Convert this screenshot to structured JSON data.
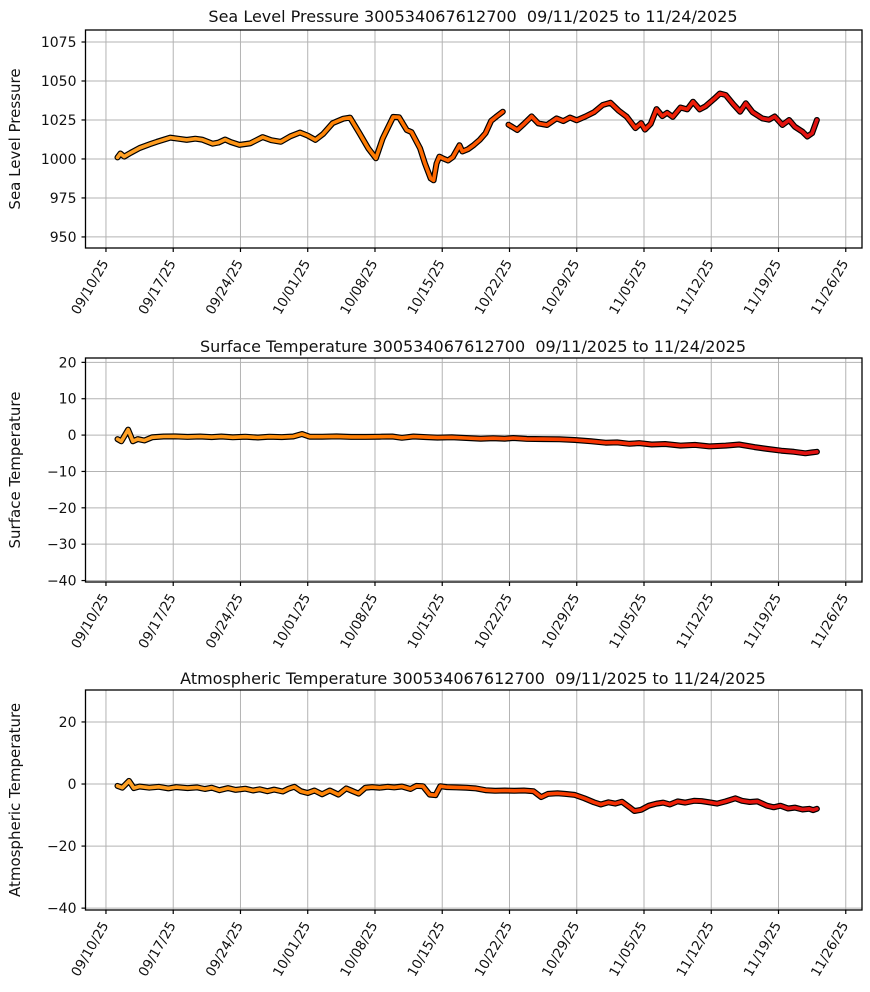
{
  "figure_meta": {
    "grid_color": "#b3b3b3",
    "axis_color": "#000000",
    "line_edge_color": "#000000",
    "line_gradient": [
      [
        "0%",
        "#ffa228"
      ],
      [
        "20%",
        "#ff9210"
      ],
      [
        "38%",
        "#ff7a00"
      ],
      [
        "52%",
        "#ff5800"
      ],
      [
        "65%",
        "#fa3a00"
      ],
      [
        "78%",
        "#f02206"
      ],
      [
        "90%",
        "#e8140c"
      ],
      [
        "100%",
        "#e01212"
      ]
    ]
  },
  "chart_data": [
    {
      "type": "line",
      "title": "Sea Level Pressure 300534067612700  09/11/2025 to 11/24/2025",
      "ylabel": "Sea Level Pressure",
      "grid": true,
      "legend": false,
      "xlim_days": [
        -2.13,
        78.69
      ],
      "ylim": [
        942.9,
        1082.7
      ],
      "x_tick_days": [
        0,
        7,
        14,
        21,
        28,
        35,
        42,
        49,
        56,
        63,
        70,
        77
      ],
      "x_tick_labels": [
        "09/10/25",
        "09/17/25",
        "09/24/25",
        "10/01/25",
        "10/08/25",
        "10/15/25",
        "10/22/25",
        "10/29/25",
        "11/05/25",
        "11/12/25",
        "11/19/25",
        "11/26/25"
      ],
      "y_ticks": [
        950,
        975,
        1000,
        1025,
        1050,
        1075
      ],
      "y_tick_labels": [
        "950",
        "975",
        "1000",
        "1025",
        "1050",
        "1075"
      ],
      "x_is_days_since": "09/10/2025",
      "segments": [
        [
          [
            1.2,
            1001
          ],
          [
            1.5,
            1003.5
          ],
          [
            1.9,
            1001.5
          ],
          [
            2.6,
            1004
          ],
          [
            3.5,
            1007
          ],
          [
            4.6,
            1009.5
          ],
          [
            5.3,
            1011
          ],
          [
            6.7,
            1013.7
          ],
          [
            7.5,
            1013
          ],
          [
            8.4,
            1012.2
          ],
          [
            9.3,
            1013
          ],
          [
            10.0,
            1012.4
          ],
          [
            11.1,
            1009.8
          ],
          [
            11.7,
            1010.5
          ],
          [
            12.4,
            1012.5
          ],
          [
            13.0,
            1010.8
          ],
          [
            13.9,
            1009
          ],
          [
            15.0,
            1010
          ],
          [
            16.3,
            1014
          ],
          [
            17.2,
            1012
          ],
          [
            18.2,
            1011
          ],
          [
            19.2,
            1014.5
          ],
          [
            20.2,
            1017
          ],
          [
            21.0,
            1015
          ],
          [
            21.8,
            1012.2
          ],
          [
            22.6,
            1016
          ],
          [
            23.6,
            1023
          ],
          [
            24.7,
            1025.8
          ],
          [
            25.4,
            1026.5
          ],
          [
            26.4,
            1016.4
          ],
          [
            27.3,
            1006.8
          ],
          [
            28.1,
            1000.4
          ],
          [
            28.8,
            1013.2
          ],
          [
            29.9,
            1027
          ],
          [
            30.5,
            1026.8
          ],
          [
            31.3,
            1018.6
          ],
          [
            31.8,
            1017.2
          ],
          [
            32.7,
            1006.8
          ],
          [
            33.2,
            997.2
          ],
          [
            33.8,
            987.5
          ],
          [
            34.1,
            986.3
          ],
          [
            34.4,
            997
          ],
          [
            34.7,
            1001.5
          ],
          [
            35.1,
            1000.3
          ],
          [
            35.6,
            999
          ],
          [
            36.1,
            1001.2
          ],
          [
            36.8,
            1008.8
          ],
          [
            37.1,
            1004.8
          ],
          [
            37.7,
            1006.3
          ],
          [
            38.3,
            1009
          ],
          [
            38.9,
            1012.2
          ],
          [
            39.5,
            1016.5
          ],
          [
            40.1,
            1024.5
          ],
          [
            40.6,
            1027
          ],
          [
            41.3,
            1030.3
          ]
        ],
        [
          [
            41.9,
            1022
          ],
          [
            42.3,
            1020.5
          ],
          [
            42.8,
            1018.6
          ],
          [
            43.5,
            1022.5
          ],
          [
            44.3,
            1027.3
          ],
          [
            45.0,
            1022.8
          ],
          [
            45.9,
            1021.8
          ],
          [
            46.9,
            1026
          ],
          [
            47.6,
            1024.3
          ],
          [
            48.3,
            1026.6
          ],
          [
            49.0,
            1024.8
          ],
          [
            49.9,
            1027.2
          ],
          [
            50.8,
            1030
          ],
          [
            51.7,
            1034.6
          ],
          [
            52.5,
            1036.1
          ],
          [
            53.4,
            1030.8
          ],
          [
            54.2,
            1027.1
          ],
          [
            55.1,
            1019.8
          ],
          [
            55.7,
            1023
          ],
          [
            56.1,
            1018.8
          ],
          [
            56.7,
            1022.5
          ],
          [
            57.3,
            1032
          ],
          [
            57.9,
            1027.5
          ],
          [
            58.4,
            1029.6
          ],
          [
            59.0,
            1027
          ],
          [
            59.8,
            1033
          ],
          [
            60.5,
            1031.8
          ],
          [
            61.1,
            1036.7
          ],
          [
            61.8,
            1031.8
          ],
          [
            62.4,
            1033.8
          ],
          [
            63.3,
            1038.5
          ],
          [
            63.9,
            1042
          ],
          [
            64.5,
            1041
          ],
          [
            65.3,
            1035
          ],
          [
            66.0,
            1030.3
          ],
          [
            66.6,
            1035.7
          ],
          [
            67.3,
            1030
          ],
          [
            68.3,
            1026
          ],
          [
            69.0,
            1025.2
          ],
          [
            69.6,
            1027.2
          ],
          [
            70.4,
            1021.8
          ],
          [
            71.1,
            1025
          ],
          [
            71.7,
            1020.7
          ],
          [
            72.5,
            1017.5
          ],
          [
            73.0,
            1014.4
          ],
          [
            73.5,
            1016.5
          ],
          [
            74.0,
            1025
          ]
        ]
      ]
    },
    {
      "type": "line",
      "title": "Surface Temperature 300534067612700  09/11/2025 to 11/24/2025",
      "ylabel": "Surface Temperature",
      "grid": true,
      "legend": false,
      "xlim_days": [
        -2.13,
        78.69
      ],
      "ylim": [
        -40.4,
        21.2
      ],
      "x_tick_days": [
        0,
        7,
        14,
        21,
        28,
        35,
        42,
        49,
        56,
        63,
        70,
        77
      ],
      "x_tick_labels": [
        "09/10/25",
        "09/17/25",
        "09/24/25",
        "10/01/25",
        "10/08/25",
        "10/15/25",
        "10/22/25",
        "10/29/25",
        "11/05/25",
        "11/12/25",
        "11/19/25",
        "11/26/25"
      ],
      "y_ticks": [
        20,
        10,
        0,
        -10,
        -20,
        -30,
        -40
      ],
      "y_tick_labels": [
        "20",
        "10",
        "0",
        "−10",
        "−20",
        "−30",
        "−40"
      ],
      "x_is_days_since": "09/10/2025",
      "segments": [
        [
          [
            1.2,
            -1.1
          ],
          [
            1.6,
            -1.7
          ],
          [
            2.3,
            1.5
          ],
          [
            2.8,
            -1.7
          ],
          [
            3.3,
            -1.1
          ],
          [
            4.0,
            -1.5
          ],
          [
            4.8,
            -0.6
          ],
          [
            6.0,
            -0.4
          ],
          [
            7.2,
            -0.35
          ],
          [
            8.5,
            -0.5
          ],
          [
            9.8,
            -0.4
          ],
          [
            11.0,
            -0.55
          ],
          [
            12.0,
            -0.4
          ],
          [
            13.2,
            -0.6
          ],
          [
            14.5,
            -0.45
          ],
          [
            15.8,
            -0.65
          ],
          [
            17.0,
            -0.45
          ],
          [
            18.3,
            -0.55
          ],
          [
            19.5,
            -0.4
          ],
          [
            20.4,
            0.3
          ],
          [
            21.2,
            -0.45
          ],
          [
            22.5,
            -0.45
          ],
          [
            24.0,
            -0.35
          ],
          [
            25.5,
            -0.5
          ],
          [
            27.0,
            -0.5
          ],
          [
            28.5,
            -0.45
          ],
          [
            29.8,
            -0.4
          ],
          [
            30.8,
            -0.75
          ],
          [
            32.0,
            -0.4
          ],
          [
            33.3,
            -0.55
          ],
          [
            34.5,
            -0.7
          ],
          [
            36.0,
            -0.6
          ],
          [
            37.5,
            -0.8
          ],
          [
            39.0,
            -1.0
          ],
          [
            40.3,
            -0.85
          ],
          [
            41.5,
            -1.0
          ],
          [
            42.4,
            -0.8
          ],
          [
            43.8,
            -1.05
          ],
          [
            45.5,
            -1.1
          ],
          [
            47.2,
            -1.15
          ],
          [
            48.8,
            -1.35
          ],
          [
            50.5,
            -1.7
          ],
          [
            52.0,
            -2.1
          ],
          [
            53.2,
            -2.0
          ],
          [
            54.5,
            -2.4
          ],
          [
            55.5,
            -2.2
          ],
          [
            56.8,
            -2.6
          ],
          [
            58.2,
            -2.45
          ],
          [
            59.8,
            -2.9
          ],
          [
            61.3,
            -2.7
          ],
          [
            62.8,
            -3.1
          ],
          [
            64.5,
            -2.9
          ],
          [
            65.9,
            -2.6
          ],
          [
            67.5,
            -3.3
          ],
          [
            68.8,
            -3.8
          ],
          [
            70.3,
            -4.3
          ],
          [
            71.6,
            -4.6
          ],
          [
            72.8,
            -5.0
          ],
          [
            73.5,
            -4.75
          ],
          [
            74.0,
            -4.6
          ]
        ]
      ]
    },
    {
      "type": "line",
      "title": "Atmospheric Temperature 300534067612700  09/11/2025 to 11/24/2025",
      "ylabel": "Atmospheric Temperature",
      "grid": true,
      "legend": false,
      "xlim_days": [
        -2.13,
        78.69
      ],
      "ylim": [
        -40.6,
        30.3
      ],
      "x_tick_days": [
        0,
        7,
        14,
        21,
        28,
        35,
        42,
        49,
        56,
        63,
        70,
        77
      ],
      "x_tick_labels": [
        "09/10/25",
        "09/17/25",
        "09/24/25",
        "10/01/25",
        "10/08/25",
        "10/15/25",
        "10/22/25",
        "10/29/25",
        "11/05/25",
        "11/12/25",
        "11/19/25",
        "11/26/25"
      ],
      "y_ticks": [
        20,
        0,
        -20,
        -40
      ],
      "y_tick_labels": [
        "20",
        "0",
        "−20",
        "−40"
      ],
      "x_is_days_since": "09/10/2025",
      "segments": [
        [
          [
            1.2,
            -0.6
          ],
          [
            1.7,
            -1.2
          ],
          [
            2.4,
            1.0
          ],
          [
            2.9,
            -1.3
          ],
          [
            3.5,
            -0.8
          ],
          [
            4.5,
            -1.2
          ],
          [
            5.5,
            -0.9
          ],
          [
            6.5,
            -1.4
          ],
          [
            7.3,
            -1.0
          ],
          [
            8.5,
            -1.3
          ],
          [
            9.5,
            -1.1
          ],
          [
            10.3,
            -1.6
          ],
          [
            11.0,
            -1.2
          ],
          [
            11.8,
            -2.0
          ],
          [
            12.7,
            -1.3
          ],
          [
            13.5,
            -1.9
          ],
          [
            14.5,
            -1.5
          ],
          [
            15.3,
            -2.1
          ],
          [
            16.0,
            -1.7
          ],
          [
            16.8,
            -2.3
          ],
          [
            17.5,
            -1.8
          ],
          [
            18.4,
            -2.4
          ],
          [
            19.0,
            -1.5
          ],
          [
            19.6,
            -0.9
          ],
          [
            20.3,
            -2.3
          ],
          [
            21.0,
            -2.9
          ],
          [
            21.7,
            -2.1
          ],
          [
            22.5,
            -3.3
          ],
          [
            23.3,
            -2.1
          ],
          [
            24.2,
            -3.4
          ],
          [
            25.0,
            -1.4
          ],
          [
            25.6,
            -2.2
          ],
          [
            26.3,
            -3.1
          ],
          [
            27.0,
            -1.2
          ],
          [
            27.7,
            -1.0
          ],
          [
            28.5,
            -1.2
          ],
          [
            29.3,
            -0.9
          ],
          [
            30.0,
            -1.1
          ],
          [
            30.8,
            -0.8
          ],
          [
            31.7,
            -1.6
          ],
          [
            32.3,
            -0.6
          ],
          [
            33.0,
            -0.7
          ],
          [
            33.7,
            -3.4
          ],
          [
            34.3,
            -3.6
          ],
          [
            34.8,
            -0.7
          ],
          [
            35.5,
            -1.0
          ],
          [
            36.5,
            -1.1
          ],
          [
            37.5,
            -1.2
          ],
          [
            38.5,
            -1.4
          ],
          [
            39.5,
            -2.0
          ],
          [
            40.5,
            -2.2
          ],
          [
            41.5,
            -2.1
          ],
          [
            42.5,
            -2.2
          ],
          [
            43.5,
            -2.1
          ],
          [
            44.5,
            -2.3
          ],
          [
            45.3,
            -4.2
          ],
          [
            46.0,
            -3.2
          ],
          [
            47.0,
            -3.0
          ],
          [
            47.8,
            -3.2
          ],
          [
            48.8,
            -3.5
          ],
          [
            49.8,
            -4.6
          ],
          [
            50.8,
            -5.9
          ],
          [
            51.5,
            -6.6
          ],
          [
            52.3,
            -5.9
          ],
          [
            53.0,
            -6.3
          ],
          [
            53.7,
            -5.7
          ],
          [
            54.5,
            -7.5
          ],
          [
            55.0,
            -8.7
          ],
          [
            55.7,
            -8.3
          ],
          [
            56.5,
            -7.0
          ],
          [
            57.3,
            -6.3
          ],
          [
            58.0,
            -6.0
          ],
          [
            58.7,
            -6.6
          ],
          [
            59.5,
            -5.6
          ],
          [
            60.3,
            -6.0
          ],
          [
            61.2,
            -5.4
          ],
          [
            62.0,
            -5.5
          ],
          [
            63.0,
            -6.0
          ],
          [
            63.6,
            -6.3
          ],
          [
            64.5,
            -5.6
          ],
          [
            65.5,
            -4.6
          ],
          [
            66.2,
            -5.4
          ],
          [
            67.0,
            -5.8
          ],
          [
            67.8,
            -5.6
          ],
          [
            68.8,
            -7.0
          ],
          [
            69.5,
            -7.5
          ],
          [
            70.2,
            -7.0
          ],
          [
            71.0,
            -7.9
          ],
          [
            71.7,
            -7.6
          ],
          [
            72.5,
            -8.2
          ],
          [
            73.2,
            -8.0
          ],
          [
            73.6,
            -8.4
          ],
          [
            74.0,
            -8.0
          ]
        ]
      ]
    }
  ]
}
